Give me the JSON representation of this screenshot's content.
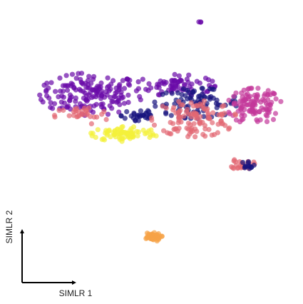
{
  "chart_data": {
    "type": "scatter",
    "title": "",
    "xlabel": "SIMLR 1",
    "ylabel": "SIMLR 2",
    "grid": false,
    "legend": "none",
    "xlim": [
      0,
      100
    ],
    "ylim": [
      0,
      100
    ],
    "colors": {
      "dark_navy": "#17127e",
      "violet": "#6a0aa8",
      "magenta": "#c3389a",
      "salmon": "#e26874",
      "orange": "#f6a347",
      "yellow": "#f3f13a",
      "axis": "#000000"
    },
    "clusters": [
      {
        "group": "violet",
        "cx": 30,
        "cy": 69,
        "rx": 17,
        "ry": 7,
        "n": 170
      },
      {
        "group": "violet",
        "cx": 58,
        "cy": 72,
        "rx": 13,
        "ry": 3.5,
        "n": 70
      },
      {
        "group": "violet",
        "cx": 66,
        "cy": 93,
        "rx": 0.5,
        "ry": 0.5,
        "n": 3
      },
      {
        "group": "dark_navy",
        "cx": 65,
        "cy": 66,
        "rx": 14,
        "ry": 5,
        "n": 90
      },
      {
        "group": "dark_navy",
        "cx": 46,
        "cy": 62,
        "rx": 6,
        "ry": 3,
        "n": 30
      },
      {
        "group": "magenta",
        "cx": 84,
        "cy": 65,
        "rx": 9,
        "ry": 6,
        "n": 110
      },
      {
        "group": "salmon",
        "cx": 64,
        "cy": 61,
        "rx": 14,
        "ry": 6,
        "n": 110
      },
      {
        "group": "salmon",
        "cx": 27,
        "cy": 62,
        "rx": 9,
        "ry": 3,
        "n": 30
      },
      {
        "group": "yellow",
        "cx": 41,
        "cy": 56,
        "rx": 11,
        "ry": 2.5,
        "n": 80
      },
      {
        "group": "salmon",
        "cx": 80,
        "cy": 46,
        "rx": 4,
        "ry": 2,
        "n": 25
      },
      {
        "group": "dark_navy",
        "cx": 82,
        "cy": 46,
        "rx": 2,
        "ry": 1.5,
        "n": 12
      },
      {
        "group": "orange",
        "cx": 50,
        "cy": 22,
        "rx": 3.5,
        "ry": 1.5,
        "n": 45
      }
    ]
  }
}
